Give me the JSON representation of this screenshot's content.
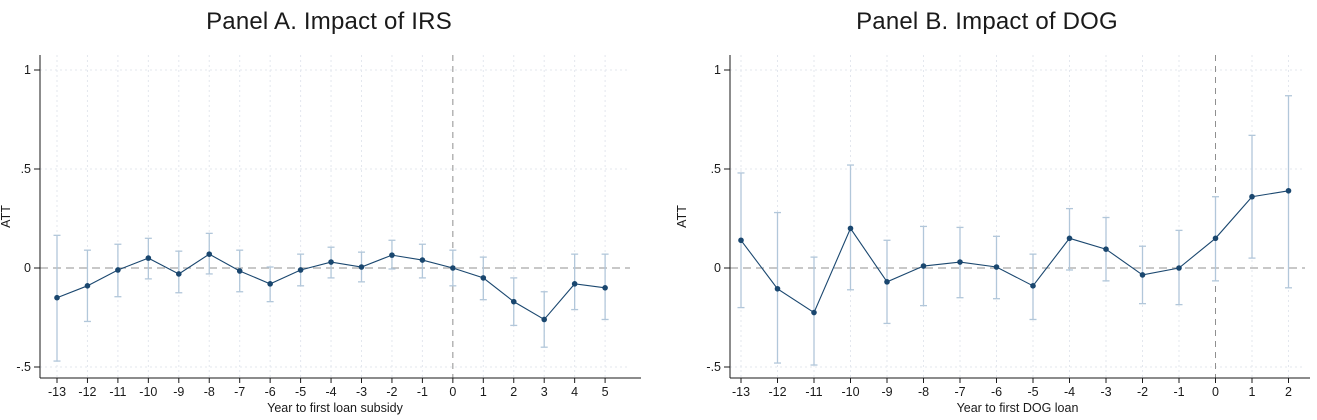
{
  "figure": {
    "background": "#ffffff",
    "panel_count": 2
  },
  "colors": {
    "marker": "#1a476f",
    "line": "#1a476f",
    "ci_bar": "#b2c7da",
    "zero_line": "#a6a6a6",
    "event_line": "#8f8f8f",
    "gridline": "#e3e7ee",
    "axis": "#1a1a1a",
    "title": "#1a1a1a",
    "tick_label": "#1a1a1a"
  },
  "chart_data": [
    {
      "type": "line",
      "title": "Panel A. Impact of IRS",
      "xlabel": "Year to first loan subsidy",
      "ylabel": "ATT",
      "grid": true,
      "legend": "none",
      "ylim": [
        -0.55,
        1.05
      ],
      "ytick_values": [
        1,
        0.5,
        0,
        -0.5
      ],
      "ytick_labels": [
        "1",
        ".5",
        "0",
        "-.5"
      ],
      "reference_lines": {
        "horizontal_y": 0,
        "vertical_x": 0
      },
      "x": [
        -13,
        -12,
        -11,
        -10,
        -9,
        -8,
        -7,
        -6,
        -5,
        -4,
        -3,
        -2,
        -1,
        0,
        1,
        2,
        3,
        4,
        5
      ],
      "xtick_labels": [
        "-13",
        "-12",
        "-11",
        "-10",
        "-9",
        "-8",
        "-7",
        "-6",
        "-5",
        "-4",
        "-3",
        "-2",
        "-1",
        "0",
        "1",
        "2",
        "3",
        "4",
        "5"
      ],
      "series": [
        {
          "name": "ATT",
          "values": [
            -0.15,
            -0.09,
            -0.01,
            0.05,
            -0.03,
            0.07,
            -0.015,
            -0.08,
            -0.01,
            0.03,
            0.005,
            0.065,
            0.04,
            0.0,
            -0.05,
            -0.17,
            -0.26,
            -0.08,
            -0.1
          ],
          "ci_low": [
            -0.47,
            -0.27,
            -0.145,
            -0.055,
            -0.125,
            -0.03,
            -0.12,
            -0.17,
            -0.09,
            -0.05,
            -0.07,
            -0.005,
            -0.05,
            -0.09,
            -0.16,
            -0.29,
            -0.4,
            -0.21,
            -0.26
          ],
          "ci_high": [
            0.165,
            0.09,
            0.12,
            0.15,
            0.085,
            0.175,
            0.09,
            0.005,
            0.07,
            0.105,
            0.08,
            0.14,
            0.12,
            0.09,
            0.055,
            -0.05,
            -0.12,
            0.07,
            0.07
          ]
        }
      ]
    },
    {
      "type": "line",
      "title": "Panel B. Impact of DOG",
      "xlabel": "Year to first DOG loan",
      "ylabel": "ATT",
      "grid": true,
      "legend": "none",
      "ylim": [
        -0.55,
        1.05
      ],
      "ytick_values": [
        1,
        0.5,
        0,
        -0.5
      ],
      "ytick_labels": [
        "1",
        ".5",
        "0",
        "-.5"
      ],
      "reference_lines": {
        "horizontal_y": 0,
        "vertical_x": 0
      },
      "x": [
        -13,
        -12,
        -11,
        -10,
        -9,
        -8,
        -7,
        -6,
        -5,
        -4,
        -3,
        -2,
        -1,
        0,
        1,
        2
      ],
      "xtick_labels": [
        "-13",
        "-12",
        "-11",
        "-10",
        "-9",
        "-8",
        "-7",
        "-6",
        "-5",
        "-4",
        "-3",
        "-2",
        "-1",
        "0",
        "1",
        "2"
      ],
      "series": [
        {
          "name": "ATT",
          "values": [
            0.14,
            -0.105,
            -0.225,
            0.2,
            -0.07,
            0.01,
            0.03,
            0.005,
            -0.09,
            0.15,
            0.095,
            -0.035,
            0.0,
            0.15,
            0.36,
            0.39
          ],
          "ci_low": [
            -0.2,
            -0.48,
            -0.49,
            -0.11,
            -0.28,
            -0.19,
            -0.15,
            -0.155,
            -0.26,
            -0.01,
            -0.065,
            -0.18,
            -0.185,
            -0.065,
            0.05,
            -0.1
          ],
          "ci_high": [
            0.48,
            0.28,
            0.055,
            0.52,
            0.14,
            0.21,
            0.205,
            0.16,
            0.07,
            0.3,
            0.255,
            0.11,
            0.19,
            0.36,
            0.67,
            0.87
          ]
        }
      ]
    }
  ]
}
